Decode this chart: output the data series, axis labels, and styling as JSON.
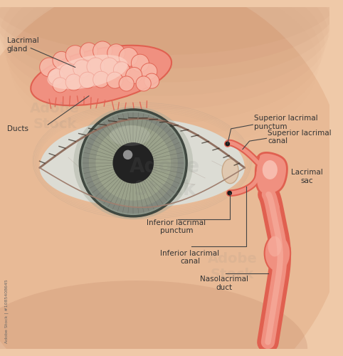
{
  "bg_color": "#efc9a8",
  "skin_color": "#e8ba96",
  "skin_shadow": "#c8906a",
  "eye_white": "#dcdcd4",
  "eye_white_edge": "#b8b0a8",
  "iris_gray": "#8a9488",
  "iris_light": "#b0b89a",
  "iris_dark": "#606858",
  "pupil_color": "#222222",
  "lac_red": "#e06050",
  "lac_pink": "#f09080",
  "lac_light": "#f8b8a8",
  "lac_vlight": "#fcd8cc",
  "text_color": "#333333",
  "line_color": "#444444",
  "label_lacrimal_gland": "Lacrimal\ngland",
  "label_ducts": "Ducts",
  "label_superior_punctum": "Superior lacrimal\npunctum",
  "label_superior_canal": "Superior lacrimal\ncanal",
  "label_inferior_punctum": "Inferior lacrimal\npunctum",
  "label_inferior_canal": "Inferior lacrimal\ncanal",
  "label_nasolacrimal": "Nasolacrimal\nduct",
  "label_lacrimal_sac": "Lacrimal\nsac",
  "stock_id": "Adobe Stock | #1085408645"
}
